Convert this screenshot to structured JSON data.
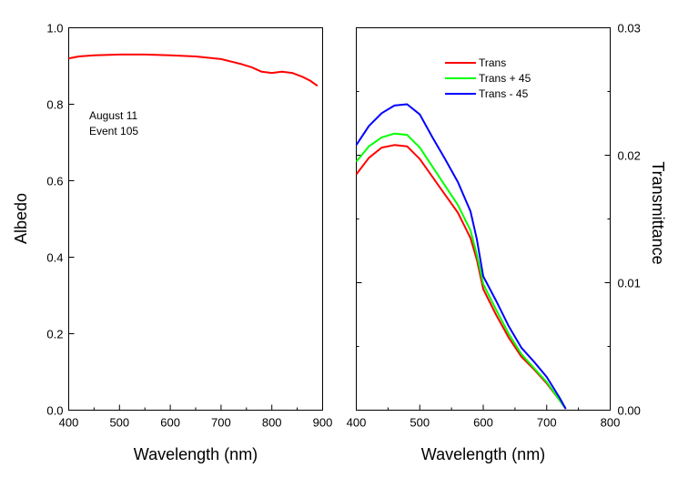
{
  "chart_data": [
    {
      "type": "line",
      "xlabel": "Wavelength (nm)",
      "ylabel": "Albedo",
      "xlim": [
        400,
        900
      ],
      "ylim": [
        0.0,
        1.0
      ],
      "xticks": [
        "400",
        "500",
        "600",
        "700",
        "800",
        "900"
      ],
      "yticks": [
        "0.0",
        "0.2",
        "0.4",
        "0.6",
        "0.8",
        "1.0"
      ],
      "grid": false,
      "annotation": [
        "August 11",
        "Event 105"
      ],
      "series": [
        {
          "color": "#ff0000",
          "x": [
            400,
            420,
            450,
            500,
            550,
            600,
            650,
            700,
            740,
            760,
            780,
            800,
            820,
            840,
            860,
            875,
            890
          ],
          "y": [
            0.92,
            0.925,
            0.928,
            0.93,
            0.93,
            0.928,
            0.925,
            0.918,
            0.905,
            0.897,
            0.885,
            0.882,
            0.885,
            0.882,
            0.872,
            0.862,
            0.848
          ]
        }
      ]
    },
    {
      "type": "line",
      "xlabel": "Wavelength (nm)",
      "ylabel": "Transmittance",
      "xlim": [
        400,
        800
      ],
      "ylim": [
        0.0,
        0.03
      ],
      "xticks": [
        "400",
        "500",
        "600",
        "700",
        "800"
      ],
      "yticks": [
        "0.00",
        "0.01",
        "0.02",
        "0.03"
      ],
      "grid": false,
      "legend": "top-center",
      "series": [
        {
          "name": "Trans",
          "color": "#ff0000",
          "x": [
            400,
            420,
            440,
            460,
            480,
            500,
            520,
            540,
            560,
            580,
            590,
            600,
            620,
            640,
            660,
            680,
            700,
            720,
            730
          ],
          "y": [
            0.0185,
            0.0198,
            0.0206,
            0.0208,
            0.0207,
            0.0197,
            0.0183,
            0.0169,
            0.0155,
            0.0135,
            0.0118,
            0.0095,
            0.0075,
            0.0057,
            0.0042,
            0.0032,
            0.0021,
            0.0008,
            0.0001
          ]
        },
        {
          "name": "Trans + 45",
          "color": "#00ff00",
          "x": [
            400,
            420,
            440,
            460,
            480,
            500,
            520,
            540,
            560,
            580,
            590,
            600,
            620,
            640,
            660,
            680,
            700,
            720,
            730
          ],
          "y": [
            0.0195,
            0.0207,
            0.0214,
            0.0217,
            0.0216,
            0.0206,
            0.0191,
            0.0176,
            0.0161,
            0.0141,
            0.0122,
            0.0099,
            0.0079,
            0.006,
            0.0044,
            0.0033,
            0.0022,
            0.0008,
            0.0001
          ]
        },
        {
          "name": "Trans - 45",
          "color": "#0000ff",
          "x": [
            400,
            420,
            440,
            460,
            480,
            500,
            520,
            540,
            560,
            580,
            590,
            600,
            620,
            640,
            660,
            680,
            700,
            720,
            730
          ],
          "y": [
            0.0208,
            0.0223,
            0.0233,
            0.0239,
            0.024,
            0.0232,
            0.0214,
            0.0197,
            0.0179,
            0.0156,
            0.0134,
            0.0105,
            0.0086,
            0.0066,
            0.0049,
            0.0038,
            0.0026,
            0.001,
            0.0001
          ]
        }
      ]
    }
  ]
}
